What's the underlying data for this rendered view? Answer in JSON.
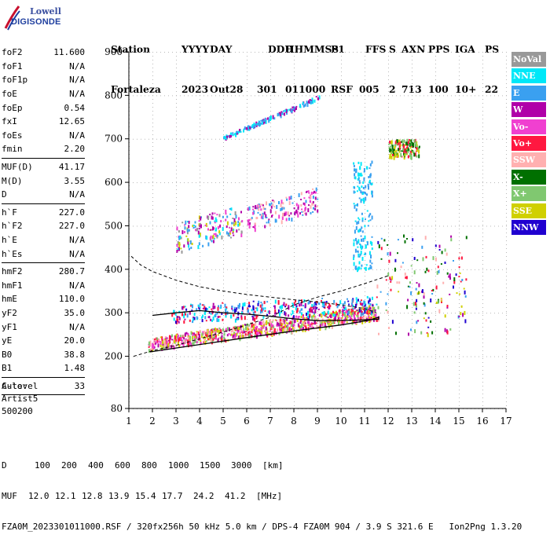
{
  "logo": {
    "line1": "Lowell",
    "line2": "DIGISONDE"
  },
  "header": {
    "labels": [
      "Station",
      "YYYY",
      "DAY",
      "DDD",
      "HHMMSS",
      "P1",
      "FFS",
      "S",
      "AXN",
      "PPS",
      "IGA",
      "PS"
    ],
    "values": [
      "Fortaleza",
      "2023",
      "Out28",
      "301",
      "011000",
      "RSF",
      "005",
      "2",
      "713",
      "100",
      "10+",
      "22"
    ]
  },
  "params": [
    {
      "group": [
        {
          "name": "foF2",
          "value": "11.600"
        },
        {
          "name": "foF1",
          "value": "N/A"
        },
        {
          "name": "foF1p",
          "value": "N/A"
        },
        {
          "name": "foE",
          "value": "N/A"
        },
        {
          "name": "foEp",
          "value": "0.54"
        },
        {
          "name": "fxI",
          "value": "12.65"
        },
        {
          "name": "foEs",
          "value": "N/A"
        },
        {
          "name": "fmin",
          "value": "2.20"
        }
      ]
    },
    {
      "group": [
        {
          "name": "MUF(D)",
          "value": "41.17"
        },
        {
          "name": "M(D)",
          "value": "3.55"
        },
        {
          "name": "D",
          "value": "N/A"
        }
      ]
    },
    {
      "group": [
        {
          "name": "h`F",
          "value": "227.0"
        },
        {
          "name": "h`F2",
          "value": "227.0"
        },
        {
          "name": "h`E",
          "value": "N/A"
        },
        {
          "name": "h`Es",
          "value": "N/A"
        }
      ]
    },
    {
      "group": [
        {
          "name": "hmF2",
          "value": "280.7"
        },
        {
          "name": "hmF1",
          "value": "N/A"
        },
        {
          "name": "hmE",
          "value": "110.0"
        },
        {
          "name": "yF2",
          "value": "35.0"
        },
        {
          "name": "yF1",
          "value": "N/A"
        },
        {
          "name": "yE",
          "value": "20.0"
        },
        {
          "name": "B0",
          "value": "38.8"
        },
        {
          "name": "B1",
          "value": "1.48"
        }
      ]
    },
    {
      "group": [
        {
          "name": "C-level",
          "value": "33"
        }
      ]
    }
  ],
  "auto": {
    "line1": "Auto:",
    "line2": "Artist5",
    "line3": "500200"
  },
  "legend": [
    {
      "label": "NoVal",
      "color": "#999999"
    },
    {
      "label": "NNE",
      "color": "#00e8f8"
    },
    {
      "label": "E",
      "color": "#3aa0f0"
    },
    {
      "label": "W",
      "color": "#b000a8"
    },
    {
      "label": "Vo-",
      "color": "#f040d0"
    },
    {
      "label": "Vo+",
      "color": "#ff1840"
    },
    {
      "label": "SSW",
      "color": "#ffb0b0"
    },
    {
      "label": "X-",
      "color": "#007000"
    },
    {
      "label": "X+",
      "color": "#80c870"
    },
    {
      "label": "SSE",
      "color": "#d0d000"
    },
    {
      "label": "NNW",
      "color": "#2000d0"
    }
  ],
  "footer": {
    "d_label": "D",
    "d_values": [
      "100",
      "200",
      "400",
      "600",
      "800",
      "1000",
      "1500",
      "3000",
      "[km]"
    ],
    "muf_label": "MUF",
    "muf_values": [
      "12.0",
      "12.1",
      "12.8",
      "13.9",
      "15.4",
      "17.7",
      "24.2",
      "41.2",
      "[MHz]"
    ],
    "info": "FZA0M_2023301011000.RSF / 320fx256h 50 kHz 5.0 km / DPS-4 FZA0M 904 / 3.9 S 321.6 E   Ion2Png 1.3.20"
  },
  "chart_data": {
    "type": "scatter",
    "xlim": [
      1,
      17
    ],
    "ylim": [
      80,
      900
    ],
    "x_ticks": [
      1,
      2,
      3,
      4,
      5,
      6,
      7,
      8,
      9,
      10,
      11,
      12,
      13,
      14,
      15,
      16,
      17
    ],
    "y_ticks": [
      80,
      200,
      300,
      400,
      500,
      600,
      700,
      800,
      900
    ],
    "grid": true,
    "trace_solid": [
      [
        1.9,
        210
      ],
      [
        4,
        227
      ],
      [
        6,
        243
      ],
      [
        8,
        258
      ],
      [
        10,
        272
      ],
      [
        11.2,
        283
      ],
      [
        11.6,
        290
      ],
      [
        11.6,
        285
      ],
      [
        10.5,
        283
      ],
      [
        9,
        282
      ],
      [
        8,
        286
      ],
      [
        7,
        292
      ],
      [
        6,
        297
      ],
      [
        5,
        300
      ],
      [
        4,
        305
      ],
      [
        3,
        300
      ],
      [
        2,
        294
      ]
    ],
    "trace_dashed": [
      [
        1.2,
        200
      ],
      [
        2,
        213
      ],
      [
        3,
        225
      ],
      [
        4,
        240
      ],
      [
        5,
        256
      ],
      [
        6,
        272
      ],
      [
        7,
        290
      ],
      [
        8,
        318
      ],
      [
        9,
        336
      ],
      [
        10,
        350
      ],
      [
        11,
        367
      ],
      [
        12,
        385
      ]
    ],
    "trace_dashed_upper": [
      [
        1.1,
        430
      ],
      [
        1.5,
        410
      ],
      [
        2,
        395
      ],
      [
        3,
        375
      ],
      [
        4,
        360
      ],
      [
        5,
        350
      ],
      [
        6,
        342
      ],
      [
        7,
        336
      ],
      [
        8,
        330
      ],
      [
        9,
        325
      ],
      [
        10,
        318
      ],
      [
        11,
        310
      ],
      [
        11.5,
        300
      ]
    ],
    "point_clouds": [
      {
        "x": [
          1.8,
          11.6
        ],
        "y": [
          215,
          300
        ],
        "colors": [
          "#ff1840",
          "#f040d0",
          "#b000a8",
          "#d0d000",
          "#80c870",
          "#ffb0b0"
        ]
      },
      {
        "x": [
          2.8,
          11.5
        ],
        "y": [
          265,
          340
        ],
        "colors": [
          "#3aa0f0",
          "#00e8f8",
          "#b000a8",
          "#2000d0",
          "#ff1840"
        ]
      },
      {
        "x": [
          3.0,
          5.8
        ],
        "y": [
          430,
          520
        ],
        "colors": [
          "#b000a8",
          "#f040d0",
          "#3aa0f0",
          "#00e8f8",
          "#d0d000",
          "#999999"
        ]
      },
      {
        "x": [
          6.0,
          9.0
        ],
        "y": [
          490,
          590
        ],
        "colors": [
          "#b000a8",
          "#f040d0",
          "#ffb0b0",
          "#3aa0f0"
        ]
      },
      {
        "x": [
          5.0,
          9.1
        ],
        "y": [
          700,
          800
        ],
        "colors": [
          "#3aa0f0",
          "#00e8f8",
          "#b000a8"
        ]
      },
      {
        "x": [
          11.5,
          15.3
        ],
        "y": [
          250,
          480
        ],
        "colors": [
          "#ffb0b0",
          "#ff1840",
          "#d0d000",
          "#80c870",
          "#3aa0f0",
          "#2000d0",
          "#b000a8",
          "#007000"
        ]
      },
      {
        "x": [
          12.0,
          13.3
        ],
        "y": [
          660,
          700
        ],
        "colors": [
          "#007000",
          "#80c870",
          "#ff1840",
          "#d0d000"
        ]
      },
      {
        "x": [
          10.5,
          11.3
        ],
        "y": [
          400,
          650
        ],
        "colors": [
          "#3aa0f0",
          "#00e8f8"
        ]
      }
    ]
  }
}
